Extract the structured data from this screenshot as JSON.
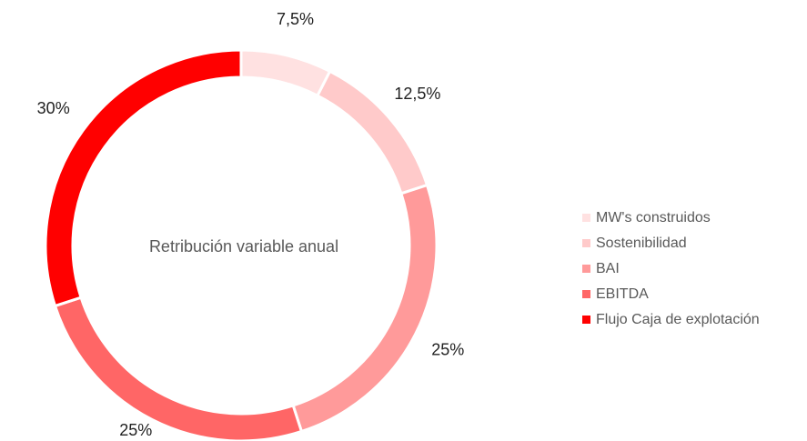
{
  "chart_data": {
    "type": "donut",
    "center_label": "Retribución variable anual",
    "categories": [
      "MW's construidos",
      "Sostenibilidad",
      "BAI",
      "EBITDA",
      "Flujo Caja de explotación"
    ],
    "values": [
      7.5,
      12.5,
      25,
      25,
      30
    ],
    "value_labels": [
      "7,5%",
      "12,5%",
      "25%",
      "25%",
      "30%"
    ],
    "colors": [
      "#ffe1e1",
      "#ffcaca",
      "#ff9a9a",
      "#ff6666",
      "#ff0000"
    ],
    "legend": "right"
  }
}
